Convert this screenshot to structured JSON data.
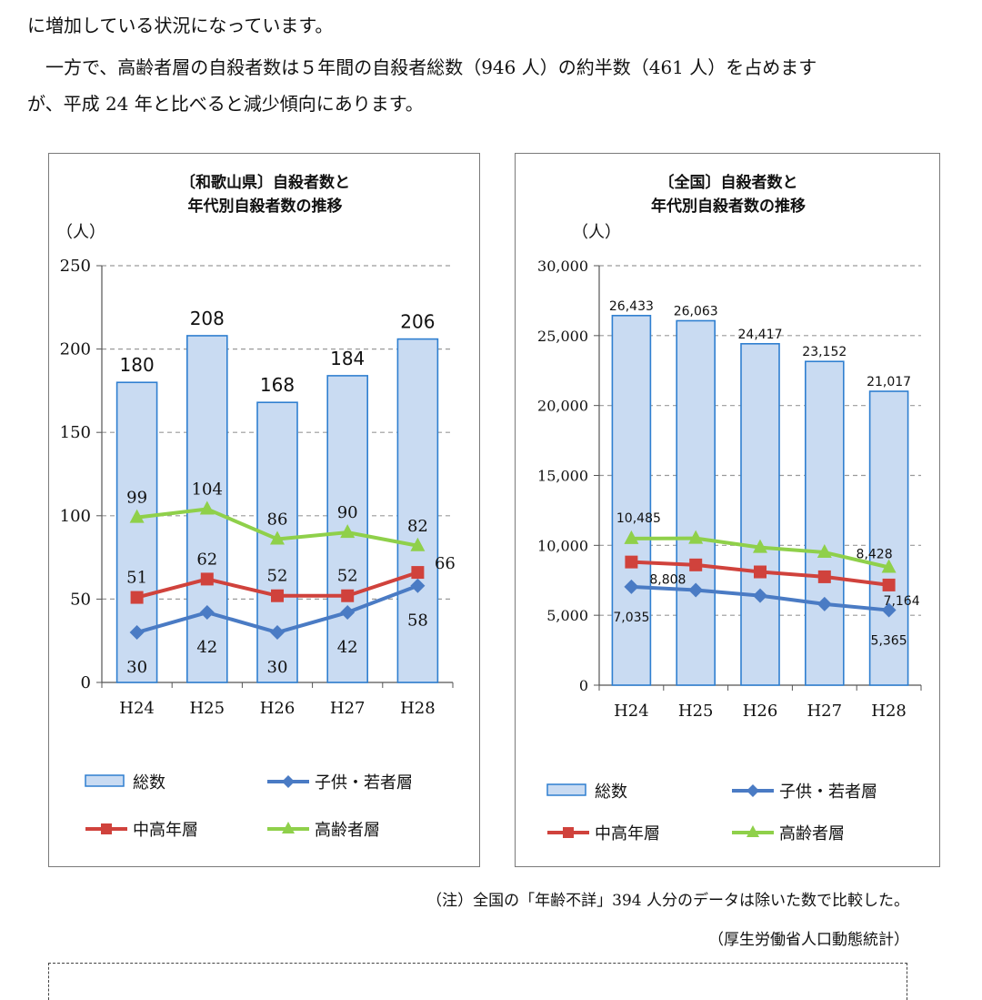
{
  "text": {
    "para1": "に増加している状況になっています。",
    "para2_a": "　一方で、高齢者層の自殺者数は５年間の自殺者総数（946 人）の約半数（461 人）を占めます",
    "para2_b": "が、平成 24 年と比べると減少傾向にあります。",
    "note_exclusion": "（注）全国の「年齢不詳」394 人分のデータは除いた数で比較した。",
    "note_source": "（厚生労働省人口動態統計）"
  },
  "colors": {
    "bar_fill": "#c9dbf2",
    "bar_stroke": "#2f7fd0",
    "youth": "#4a7bc4",
    "middle": "#d0423c",
    "elderly": "#8fd04a",
    "grid": "#9a9a9a"
  },
  "chart_data": [
    {
      "type": "bar",
      "title": "〔和歌山県〕自殺者数と",
      "subtitle": "年代別自殺者数の推移",
      "ylabel": "（人）",
      "xlabel": "",
      "ylim": [
        0,
        250
      ],
      "yticks": [
        0,
        50,
        100,
        150,
        200,
        250
      ],
      "ytick_labels": [
        "0",
        "50",
        "100",
        "150",
        "200",
        "250"
      ],
      "grid": true,
      "legend": "bottom",
      "categories": [
        "H24",
        "H25",
        "H26",
        "H27",
        "H28"
      ],
      "series": [
        {
          "name": "総数",
          "type": "bar",
          "values": [
            180,
            208,
            168,
            184,
            206
          ],
          "labels": [
            "180",
            "208",
            "168",
            "184",
            "206"
          ],
          "marker": "bar"
        },
        {
          "name": "子供・若者層",
          "type": "line",
          "values": [
            30,
            42,
            30,
            42,
            58
          ],
          "labels": [
            "30",
            "42",
            "30",
            "42",
            "58"
          ],
          "marker": "diamond"
        },
        {
          "name": "中高年層",
          "type": "line",
          "values": [
            51,
            62,
            52,
            52,
            66
          ],
          "labels": [
            "51",
            "62",
            "52",
            "52",
            "66"
          ],
          "marker": "square"
        },
        {
          "name": "高齢者層",
          "type": "line",
          "values": [
            99,
            104,
            86,
            90,
            82
          ],
          "labels": [
            "99",
            "104",
            "86",
            "90",
            "82"
          ],
          "marker": "triangle"
        }
      ]
    },
    {
      "type": "bar",
      "title": "〔全国〕自殺者数と",
      "subtitle": "年代別自殺者数の推移",
      "ylabel": "（人）",
      "xlabel": "",
      "ylim": [
        0,
        30000
      ],
      "yticks": [
        0,
        5000,
        10000,
        15000,
        20000,
        25000,
        30000
      ],
      "ytick_labels": [
        "0",
        "5,000",
        "10,000",
        "15,000",
        "20,000",
        "25,000",
        "30,000"
      ],
      "grid": true,
      "legend": "bottom",
      "categories": [
        "H24",
        "H25",
        "H26",
        "H27",
        "H28"
      ],
      "series": [
        {
          "name": "総数",
          "type": "bar",
          "values": [
            26433,
            26063,
            24417,
            23152,
            21017
          ],
          "labels": [
            "26,433",
            "26,063",
            "24,417",
            "23,152",
            "21,017"
          ],
          "marker": "bar"
        },
        {
          "name": "子供・若者層",
          "type": "line",
          "values": [
            7035,
            6800,
            6400,
            5800,
            5365
          ],
          "labels": [
            "7,035",
            "",
            "",
            "",
            "5,365"
          ],
          "marker": "diamond"
        },
        {
          "name": "中高年層",
          "type": "line",
          "values": [
            8808,
            8600,
            8100,
            7750,
            7164
          ],
          "labels": [
            "8,808",
            "",
            "",
            "",
            "7,164"
          ],
          "marker": "square"
        },
        {
          "name": "高齢者層",
          "type": "line",
          "values": [
            10485,
            10500,
            9850,
            9500,
            8428
          ],
          "labels": [
            "10,485",
            "",
            "",
            "",
            "8,428"
          ],
          "marker": "triangle"
        }
      ]
    }
  ]
}
